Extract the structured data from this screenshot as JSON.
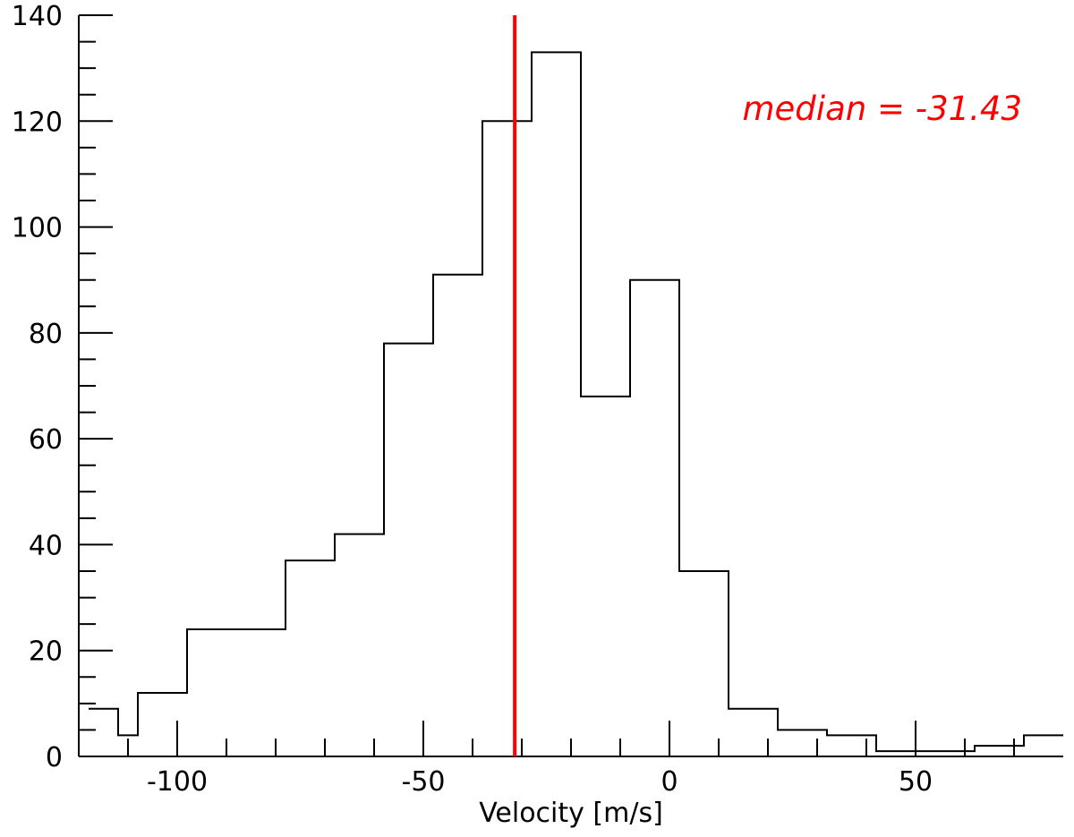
{
  "chart_data": {
    "type": "histogram",
    "bin_width": 10,
    "bin_edges": [
      -118,
      -112,
      -108,
      -98,
      -78,
      -68,
      -58,
      -48,
      -38,
      -28,
      -18,
      -8,
      2,
      12,
      22,
      32,
      42,
      62,
      72,
      80
    ],
    "counts": [
      9,
      4,
      12,
      24,
      37,
      42,
      78,
      91,
      120,
      133,
      68,
      90,
      35,
      9,
      5,
      4,
      1,
      2,
      4
    ],
    "xlim": [
      -120,
      80
    ],
    "ylim": [
      0,
      140
    ],
    "x_ticks": [
      -100,
      -50,
      0,
      50
    ],
    "x_tick_labels": [
      "-100",
      "-50",
      "0",
      "50"
    ],
    "y_ticks": [
      0,
      20,
      40,
      60,
      80,
      100,
      120,
      140
    ],
    "y_tick_labels": [
      "0",
      "20",
      "40",
      "60",
      "80",
      "100",
      "120",
      "140"
    ],
    "xlabel": "Velocity [m/s]",
    "ylabel": "",
    "median": -31.43,
    "annotation": "median = -31.43",
    "colors": {
      "histogram": "#000000",
      "median": "#ff0000"
    }
  }
}
